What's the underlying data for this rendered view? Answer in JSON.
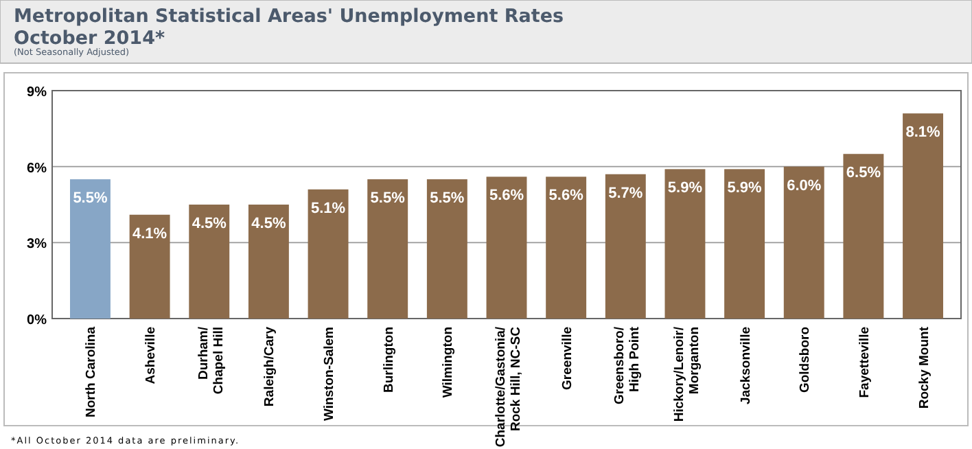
{
  "chart_data": {
    "type": "bar",
    "title": "Metropolitan Statistical Areas' Unemployment Rates\nOctober 2014*",
    "subtitle": "(Not Seasonally Adjusted)",
    "categories": [
      "North Carolina",
      "Asheville",
      "Durham/\nChapel Hill",
      "Raleigh/Cary",
      "Winston-Salem",
      "Burlington",
      "Wilmington",
      "Charlotte/Gastonia/\nRock Hill, NC-SC",
      "Greenville",
      "Greensboro/\nHigh Point",
      "Hickory/Lenoir/\nMorganton",
      "Jacksonville",
      "Goldsboro",
      "Fayetteville",
      "Rocky Mount"
    ],
    "values": [
      5.5,
      4.1,
      4.5,
      4.5,
      5.1,
      5.5,
      5.5,
      5.6,
      5.6,
      5.7,
      5.9,
      5.9,
      6.0,
      6.5,
      8.1
    ],
    "value_labels": [
      "5.5%",
      "4.1%",
      "4.5%",
      "4.5%",
      "5.1%",
      "5.5%",
      "5.5%",
      "5.6%",
      "5.6%",
      "5.7%",
      "5.9%",
      "5.9%",
      "6.0%",
      "6.5%",
      "8.1%"
    ],
    "colors": [
      "#87a6c6",
      "#8c6b4b",
      "#8c6b4b",
      "#8c6b4b",
      "#8c6b4b",
      "#8c6b4b",
      "#8c6b4b",
      "#8c6b4b",
      "#8c6b4b",
      "#8c6b4b",
      "#8c6b4b",
      "#8c6b4b",
      "#8c6b4b",
      "#8c6b4b",
      "#8c6b4b"
    ],
    "ylim": [
      0,
      9
    ],
    "yticks": [
      {
        "value": 0,
        "label": "0%"
      },
      {
        "value": 3,
        "label": "3%"
      },
      {
        "value": 6,
        "label": "6%"
      },
      {
        "value": 9,
        "label": "9%"
      }
    ],
    "grid": "y",
    "annotations": [
      "*All October 2014 data are preliminary."
    ]
  }
}
